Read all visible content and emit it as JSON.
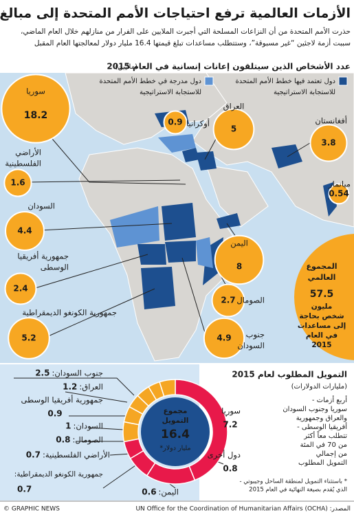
{
  "header": {
    "title": "الأزمات العالمية ترفع احتياجات الأمم المتحدة إلى مبالغ قياسية",
    "subtitle": [
      "حذرت الأمم المتحدة من أن النزاعات المسلحة التي أجبرت الملايين على الفرار من منازلهم خلال العام الماضي،",
      "سببت أزمة لاجئين “غير مسبوقة”، وستتطلب مساعدات تبلغ قيمتها 16.4 مليار دولار لمعالجتها العام المقبل"
    ]
  },
  "map": {
    "title": "عدد الأشخاص الذين سيتلقون إعانات إنسانية في العام 2015",
    "unit": "(ملايين)",
    "legend": [
      {
        "label": [
          "دول تعتمد فيها خطط الأمم المتحدة",
          "للاستجابة الاستراتيجية"
        ],
        "color": "#1d4f8f"
      },
      {
        "label": [
          "دول مدرجة في خطط الأمم المتحدة",
          "للاستجابة الاستراتيجية"
        ],
        "color": "#5e93d3"
      }
    ],
    "bubbles": [
      {
        "name": [
          "سوريا"
        ],
        "value": 18.2
      },
      {
        "name": [
          "أوكرانيا"
        ],
        "value": 0.9
      },
      {
        "name": [
          "العراق"
        ],
        "value": 5.0
      },
      {
        "name": [
          "أفغانستان"
        ],
        "value": 3.8
      },
      {
        "name": [
          "الأراضي",
          "الفلسطينية"
        ],
        "value": 1.6
      },
      {
        "name": [
          "ميانمار"
        ],
        "value": 0.54
      },
      {
        "name": [
          "السودان"
        ],
        "value": 4.4
      },
      {
        "name": [
          "اليمن"
        ],
        "value": 8.0
      },
      {
        "name": [
          "جمهورية أفريقيا",
          "الوسطى"
        ],
        "value": 2.4
      },
      {
        "name": [
          "الصومال"
        ],
        "value": 2.7
      },
      {
        "name": [
          "جمهورية الكونغو الديمقراطية"
        ],
        "value": 5.2
      },
      {
        "name": [
          "جنوب",
          "السودان"
        ],
        "value": 4.9
      }
    ],
    "total": {
      "label": [
        "المجموع",
        "العالمي"
      ],
      "value": "57.5",
      "text": [
        "مليون",
        "شخص بحاجة",
        "إلى مساعدات",
        "في العام",
        "2015"
      ]
    }
  },
  "chart_data": {
    "type": "donut",
    "title": "التمويل المطلوب لعام 2015",
    "subtitle": "(مليارات الدولارات)",
    "categories": [
      "سوريا",
      "جنوب السودان:",
      "العراق:",
      "جمهورية أفريقيا الوسطى",
      "السودان:",
      "الصومال:",
      "الأراضي الفلسطينية:",
      "جمهورية الكونغو الديمقراطية:",
      "اليمن:",
      "دول أخرى"
    ],
    "values": [
      7.2,
      2.5,
      1.2,
      0.9,
      1.0,
      0.8,
      0.7,
      0.7,
      0.6,
      0.8
    ],
    "colors": [
      "#e8194a",
      "#e8194a",
      "#e8194a",
      "#e8194a",
      "#f5a623",
      "#f5a623",
      "#f5a623",
      "#f5a623",
      "#f5a623",
      "#f5a623"
    ],
    "center": {
      "label": [
        "مجموع",
        "التمويل"
      ],
      "value": "16.4",
      "unit": "مليار دولار*"
    },
    "note": [
      "أربع أزمات -",
      "سوريا وجنوب السودان",
      "والعراق وجمهورية",
      "أفريقيا الوسطى -",
      "تتطلب معاً أكثر",
      "من 70 في المئة",
      "من إجمالي",
      "التمويل المطلوب"
    ],
    "footnote": [
      "* باستثناء التمويل لمنطقة الساحل وجيبوتي -",
      "الذي يُقدم بصيغة النهائية في العام 2015"
    ]
  },
  "footer": {
    "credit": "© GRAPHIC NEWS",
    "source": "المصدر: UN Office for the Coordination of Humanitarian Affairs (OCHA)"
  }
}
